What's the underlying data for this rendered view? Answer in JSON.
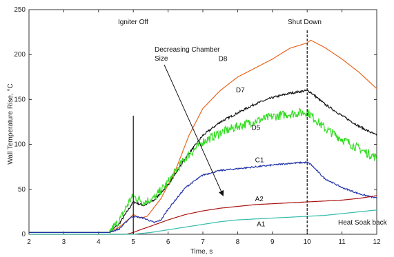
{
  "chart_data": {
    "type": "line",
    "xlabel": "Time, s",
    "ylabel": "Wall Temperature Rise,  °C",
    "xlim": [
      2,
      12
    ],
    "ylim": [
      0,
      250
    ],
    "xticks": [
      2,
      3,
      4,
      5,
      6,
      7,
      8,
      9,
      10,
      11,
      12
    ],
    "yticks": [
      0,
      50,
      100,
      150,
      200,
      250
    ],
    "grid": false,
    "legend": "none",
    "annotations": {
      "igniter_off": {
        "text": "Igniter Off",
        "x": 5
      },
      "shut_down": {
        "text": "Shut Down",
        "x": 10
      },
      "decreasing": {
        "line1": "Decreasing Chamber",
        "line2": "Size"
      },
      "heat_soak": {
        "text": "Heat Soak back"
      }
    },
    "series": [
      {
        "name": "D8",
        "color": "#e8641e",
        "noise": 0,
        "x": [
          2,
          4.3,
          4.6,
          4.9,
          5.0,
          5.2,
          5.4,
          5.8,
          6.2,
          6.6,
          7.0,
          7.5,
          8.0,
          8.5,
          9.0,
          9.5,
          10.0,
          10.1,
          10.5,
          11.0,
          11.5,
          12.0
        ],
        "y": [
          2,
          2,
          8,
          18,
          22,
          18,
          20,
          40,
          70,
          110,
          140,
          160,
          175,
          185,
          195,
          207,
          213,
          216,
          208,
          195,
          180,
          162
        ]
      },
      {
        "name": "D7",
        "color": "#111111",
        "noise": 1.2,
        "x": [
          2,
          4.3,
          4.6,
          4.9,
          5.0,
          5.3,
          5.6,
          6.0,
          6.5,
          7.0,
          7.5,
          8.0,
          8.5,
          9.0,
          9.5,
          10.0,
          10.1,
          10.5,
          11.0,
          11.5,
          12.0
        ],
        "y": [
          2,
          2,
          12,
          30,
          36,
          32,
          38,
          55,
          85,
          110,
          125,
          135,
          145,
          152,
          157,
          160,
          158,
          145,
          132,
          120,
          110
        ]
      },
      {
        "name": "D5",
        "color": "#33dd22",
        "noise": 5,
        "x": [
          2,
          4.3,
          4.6,
          4.9,
          5.0,
          5.3,
          5.6,
          6.0,
          6.5,
          7.0,
          7.5,
          8.0,
          8.5,
          9.0,
          9.5,
          10.0,
          10.1,
          10.5,
          11.0,
          11.5,
          12.0
        ],
        "y": [
          2,
          2,
          15,
          38,
          42,
          36,
          40,
          58,
          85,
          103,
          113,
          120,
          126,
          131,
          134,
          136,
          133,
          118,
          106,
          95,
          85
        ]
      },
      {
        "name": "C1",
        "color": "#2233aa",
        "noise": 0.8,
        "x": [
          2,
          4.3,
          4.6,
          4.9,
          5.0,
          5.3,
          5.6,
          5.8,
          6.0,
          6.5,
          7.0,
          7.5,
          8.0,
          8.5,
          9.0,
          9.5,
          10.0,
          10.1,
          10.5,
          11.0,
          11.5,
          12.0
        ],
        "y": [
          2,
          2,
          6,
          18,
          20,
          18,
          13,
          16,
          28,
          52,
          66,
          71,
          73,
          75,
          77,
          79,
          80,
          78,
          62,
          52,
          45,
          40
        ]
      },
      {
        "name": "A2",
        "color": "#aa1111",
        "noise": 0,
        "x": [
          2,
          4.8,
          5.0,
          5.2,
          5.5,
          6.0,
          6.5,
          7.0,
          7.5,
          8.0,
          8.5,
          9.0,
          9.5,
          10.0,
          10.5,
          11.0,
          11.5,
          12.0
        ],
        "y": [
          0,
          0,
          2,
          5,
          9,
          16,
          22,
          26,
          29,
          31,
          33,
          34,
          35,
          36,
          37,
          38,
          40,
          43
        ]
      },
      {
        "name": "A1",
        "color": "#33bbaa",
        "noise": 0,
        "x": [
          2,
          5.0,
          5.5,
          6.0,
          6.5,
          7.0,
          7.5,
          8.0,
          8.5,
          9.0,
          9.5,
          10.0,
          10.5,
          11.0,
          11.5,
          12.0
        ],
        "y": [
          0,
          0,
          2,
          5,
          8,
          11,
          14,
          16,
          17,
          18,
          19,
          20,
          21,
          23,
          25,
          27
        ]
      }
    ],
    "series_label_positions": {
      "D8": {
        "x": 7.45,
        "y": 193
      },
      "D7": {
        "x": 7.95,
        "y": 158
      },
      "D5": {
        "x": 8.4,
        "y": 116
      },
      "C1": {
        "x": 8.5,
        "y": 80
      },
      "A2": {
        "x": 8.5,
        "y": 37
      },
      "A1": {
        "x": 8.55,
        "y": 9
      }
    }
  }
}
